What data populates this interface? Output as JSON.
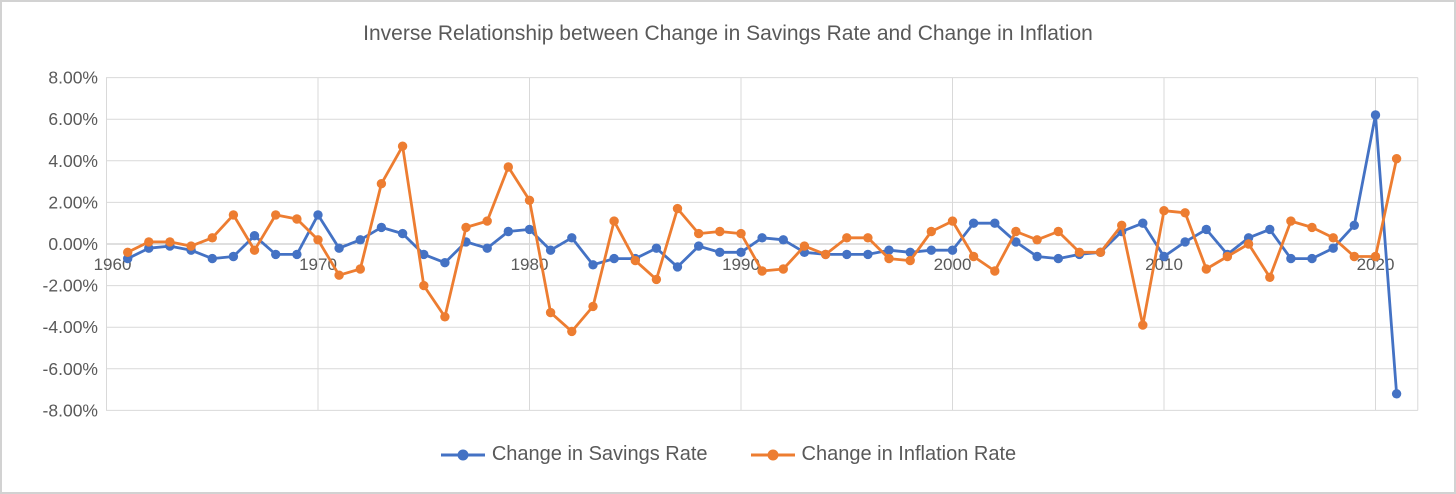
{
  "chart_data": {
    "type": "line",
    "title": "Inverse Relationship between Change in Savings Rate and Change in Inflation",
    "x_start_year": 1961,
    "x": [
      1961,
      1962,
      1963,
      1964,
      1965,
      1966,
      1967,
      1968,
      1969,
      1970,
      1971,
      1972,
      1973,
      1974,
      1975,
      1976,
      1977,
      1978,
      1979,
      1980,
      1981,
      1982,
      1983,
      1984,
      1985,
      1986,
      1987,
      1988,
      1989,
      1990,
      1991,
      1992,
      1993,
      1994,
      1995,
      1996,
      1997,
      1998,
      1999,
      2000,
      2001,
      2002,
      2003,
      2004,
      2005,
      2006,
      2007,
      2008,
      2009,
      2010,
      2011,
      2012,
      2013,
      2014,
      2015,
      2016,
      2017,
      2018,
      2019,
      2020,
      2021
    ],
    "series": [
      {
        "name": "Change in Savings Rate",
        "color": "#4472C4",
        "values": [
          -0.7,
          -0.2,
          -0.1,
          -0.3,
          -0.7,
          -0.6,
          0.4,
          -0.5,
          -0.5,
          1.4,
          -0.2,
          0.2,
          0.8,
          0.5,
          -0.5,
          -0.9,
          0.1,
          -0.2,
          0.6,
          0.7,
          -0.3,
          0.3,
          -1.0,
          -0.7,
          -0.7,
          -0.2,
          -1.1,
          -0.1,
          -0.4,
          -0.4,
          0.3,
          0.2,
          -0.4,
          -0.5,
          -0.5,
          -0.5,
          -0.3,
          -0.4,
          -0.3,
          -0.3,
          1.0,
          1.0,
          0.1,
          -0.6,
          -0.7,
          -0.5,
          -0.4,
          0.6,
          1.0,
          -0.6,
          0.1,
          0.7,
          -0.5,
          0.3,
          0.7,
          -0.7,
          -0.7,
          -0.2,
          0.9,
          6.2,
          -7.2
        ]
      },
      {
        "name": "Change in Inflation Rate",
        "color": "#ED7D31",
        "values": [
          -0.4,
          0.1,
          0.1,
          -0.1,
          0.3,
          1.4,
          -0.3,
          1.4,
          1.2,
          0.2,
          -1.5,
          -1.2,
          2.9,
          4.7,
          -2.0,
          -3.5,
          0.8,
          1.1,
          3.7,
          2.1,
          -3.3,
          -4.2,
          -3.0,
          1.1,
          -0.8,
          -1.7,
          1.7,
          0.5,
          0.6,
          0.5,
          -1.3,
          -1.2,
          -0.1,
          -0.5,
          0.3,
          0.3,
          -0.7,
          -0.8,
          0.6,
          1.1,
          -0.6,
          -1.3,
          0.6,
          0.2,
          0.6,
          -0.4,
          -0.4,
          0.9,
          -3.9,
          1.6,
          1.5,
          -1.2,
          -0.6,
          0.0,
          -1.6,
          1.1,
          0.8,
          0.3,
          -0.6,
          -0.6,
          4.1
        ]
      }
    ],
    "xlabel": "",
    "ylabel": "",
    "y_axis": {
      "min": -8,
      "max": 8,
      "tick_step": 2,
      "tick_labels": [
        "8.00%",
        "6.00%",
        "4.00%",
        "2.00%",
        "0.00%",
        "-2.00%",
        "-4.00%",
        "-6.00%",
        "-8.00%"
      ],
      "tick_values": [
        8,
        6,
        4,
        2,
        0,
        -2,
        -4,
        -6,
        -8
      ]
    },
    "x_axis": {
      "min": 1960,
      "max": 2022,
      "tick_labels": [
        "1960",
        "1970",
        "1980",
        "1990",
        "2000",
        "2010",
        "2020"
      ],
      "tick_values": [
        1960,
        1970,
        1980,
        1990,
        2000,
        2010,
        2020
      ]
    },
    "grid": true,
    "legend_position": "bottom",
    "colors": {
      "gridline": "#D9D9D9",
      "zero_axis_line": "#BFBFBF",
      "text": "#595959",
      "frame_border": "#D2D2D2",
      "background": "#FFFFFF"
    }
  }
}
